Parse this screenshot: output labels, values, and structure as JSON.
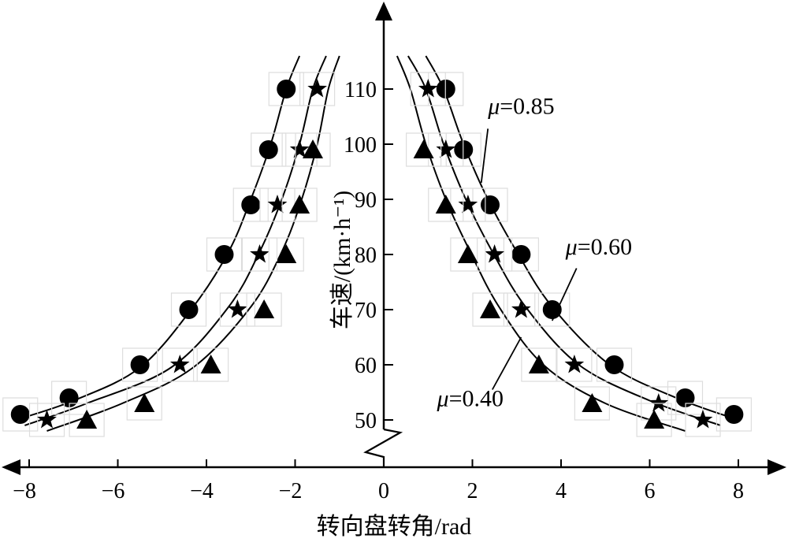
{
  "chart_data": {
    "type": "scatter",
    "xlabel": "转向盘转角/rad",
    "ylabel": "车速/(km·h⁻¹)",
    "xlim": [
      -8.5,
      8.5
    ],
    "ylim": [
      50,
      120
    ],
    "x_ticks": [
      {
        "value": -8,
        "label": "−8"
      },
      {
        "value": -6,
        "label": "−6"
      },
      {
        "value": -4,
        "label": "−4"
      },
      {
        "value": -2,
        "label": "−2"
      },
      {
        "value": 0,
        "label": "0"
      },
      {
        "value": 2,
        "label": "2"
      },
      {
        "value": 4,
        "label": "4"
      },
      {
        "value": 6,
        "label": "6"
      },
      {
        "value": 8,
        "label": "8"
      }
    ],
    "y_ticks": [
      {
        "value": 50,
        "label": "50"
      },
      {
        "value": 60,
        "label": "60"
      },
      {
        "value": 70,
        "label": "70"
      },
      {
        "value": 80,
        "label": "80"
      },
      {
        "value": 90,
        "label": "90"
      },
      {
        "value": 100,
        "label": "100"
      },
      {
        "value": 110,
        "label": "110"
      }
    ],
    "series": [
      {
        "name": "μ=0.85",
        "marker": "circle",
        "points": [
          [
            -8.2,
            51
          ],
          [
            -7.1,
            54
          ],
          [
            -5.5,
            60
          ],
          [
            -4.4,
            70
          ],
          [
            -3.6,
            80
          ],
          [
            -3.0,
            89
          ],
          [
            -2.6,
            99
          ],
          [
            -2.2,
            110
          ],
          [
            1.4,
            110
          ],
          [
            1.8,
            99
          ],
          [
            2.4,
            89
          ],
          [
            3.1,
            80
          ],
          [
            3.8,
            70
          ],
          [
            5.2,
            60
          ],
          [
            6.8,
            54
          ],
          [
            7.9,
            51
          ]
        ],
        "curve_left": [
          [
            -8.3,
            50
          ],
          [
            -7.0,
            53.5
          ],
          [
            -5.5,
            59.5
          ],
          [
            -4.3,
            70.5
          ],
          [
            -3.5,
            80.5
          ],
          [
            -3.0,
            90
          ],
          [
            -2.55,
            100
          ],
          [
            -2.2,
            110
          ],
          [
            -1.9,
            116
          ]
        ],
        "curve_right": [
          [
            0.95,
            116
          ],
          [
            1.35,
            110
          ],
          [
            1.8,
            100
          ],
          [
            2.35,
            90
          ],
          [
            3.0,
            80.5
          ],
          [
            3.8,
            70.5
          ],
          [
            5.1,
            60
          ],
          [
            6.6,
            54
          ],
          [
            8.0,
            50
          ]
        ]
      },
      {
        "name": "μ=0.60",
        "marker": "star",
        "points": [
          [
            -7.6,
            50
          ],
          [
            -4.6,
            60
          ],
          [
            -3.3,
            70
          ],
          [
            -2.8,
            80
          ],
          [
            -2.4,
            89
          ],
          [
            -1.9,
            99
          ],
          [
            -1.5,
            110
          ],
          [
            1.0,
            110
          ],
          [
            1.4,
            99
          ],
          [
            1.9,
            89
          ],
          [
            2.5,
            80
          ],
          [
            3.1,
            70
          ],
          [
            4.3,
            60
          ],
          [
            6.2,
            53
          ],
          [
            7.2,
            50
          ]
        ],
        "curve_left": [
          [
            -8.1,
            49
          ],
          [
            -6.7,
            53
          ],
          [
            -4.8,
            59.5
          ],
          [
            -3.5,
            70.5
          ],
          [
            -2.8,
            80.5
          ],
          [
            -2.3,
            90
          ],
          [
            -1.9,
            100
          ],
          [
            -1.6,
            110
          ],
          [
            -1.3,
            116
          ]
        ],
        "curve_right": [
          [
            0.55,
            116
          ],
          [
            0.95,
            110
          ],
          [
            1.35,
            100
          ],
          [
            1.85,
            90
          ],
          [
            2.45,
            80.5
          ],
          [
            3.2,
            70.5
          ],
          [
            4.4,
            60
          ],
          [
            6.0,
            53.5
          ],
          [
            7.6,
            49
          ]
        ]
      },
      {
        "name": "μ=0.40",
        "marker": "triangle",
        "points": [
          [
            -6.7,
            50
          ],
          [
            -5.4,
            53
          ],
          [
            -3.9,
            60
          ],
          [
            -2.7,
            70
          ],
          [
            -2.2,
            80
          ],
          [
            -1.9,
            89
          ],
          [
            -1.6,
            99
          ],
          [
            0.9,
            99
          ],
          [
            1.4,
            89
          ],
          [
            1.9,
            80
          ],
          [
            2.4,
            70
          ],
          [
            3.5,
            60
          ],
          [
            4.7,
            53
          ],
          [
            6.1,
            50
          ]
        ],
        "curve_left": [
          [
            -7.6,
            48
          ],
          [
            -5.9,
            53
          ],
          [
            -4.3,
            59.5
          ],
          [
            -3.0,
            70.5
          ],
          [
            -2.3,
            80.5
          ],
          [
            -1.85,
            90
          ],
          [
            -1.5,
            100
          ],
          [
            -1.25,
            110
          ],
          [
            -1.0,
            116
          ]
        ],
        "curve_right": [
          [
            0.3,
            116
          ],
          [
            0.6,
            110
          ],
          [
            0.95,
            100
          ],
          [
            1.4,
            90
          ],
          [
            1.95,
            80.5
          ],
          [
            2.6,
            70.5
          ],
          [
            3.6,
            60
          ],
          [
            5.0,
            53
          ],
          [
            6.8,
            48
          ]
        ]
      }
    ],
    "annotations": [
      {
        "text_parts": [
          "μ",
          "=0.85"
        ],
        "x": 2.35,
        "y": 105.5,
        "leader_from": [
          2.35,
          102.8
        ],
        "leader_to": [
          2.2,
          93
        ]
      },
      {
        "text_parts": [
          "μ",
          "=0.60"
        ],
        "x": 4.1,
        "y": 80,
        "leader_from": [
          4.35,
          77.5
        ],
        "leader_to": [
          3.8,
          68
        ]
      },
      {
        "text_parts": [
          "μ",
          "=0.40"
        ],
        "x": 1.2,
        "y": 52.5,
        "leader_from": [
          2.45,
          55.5
        ],
        "leader_to": [
          3.1,
          65
        ]
      }
    ]
  }
}
